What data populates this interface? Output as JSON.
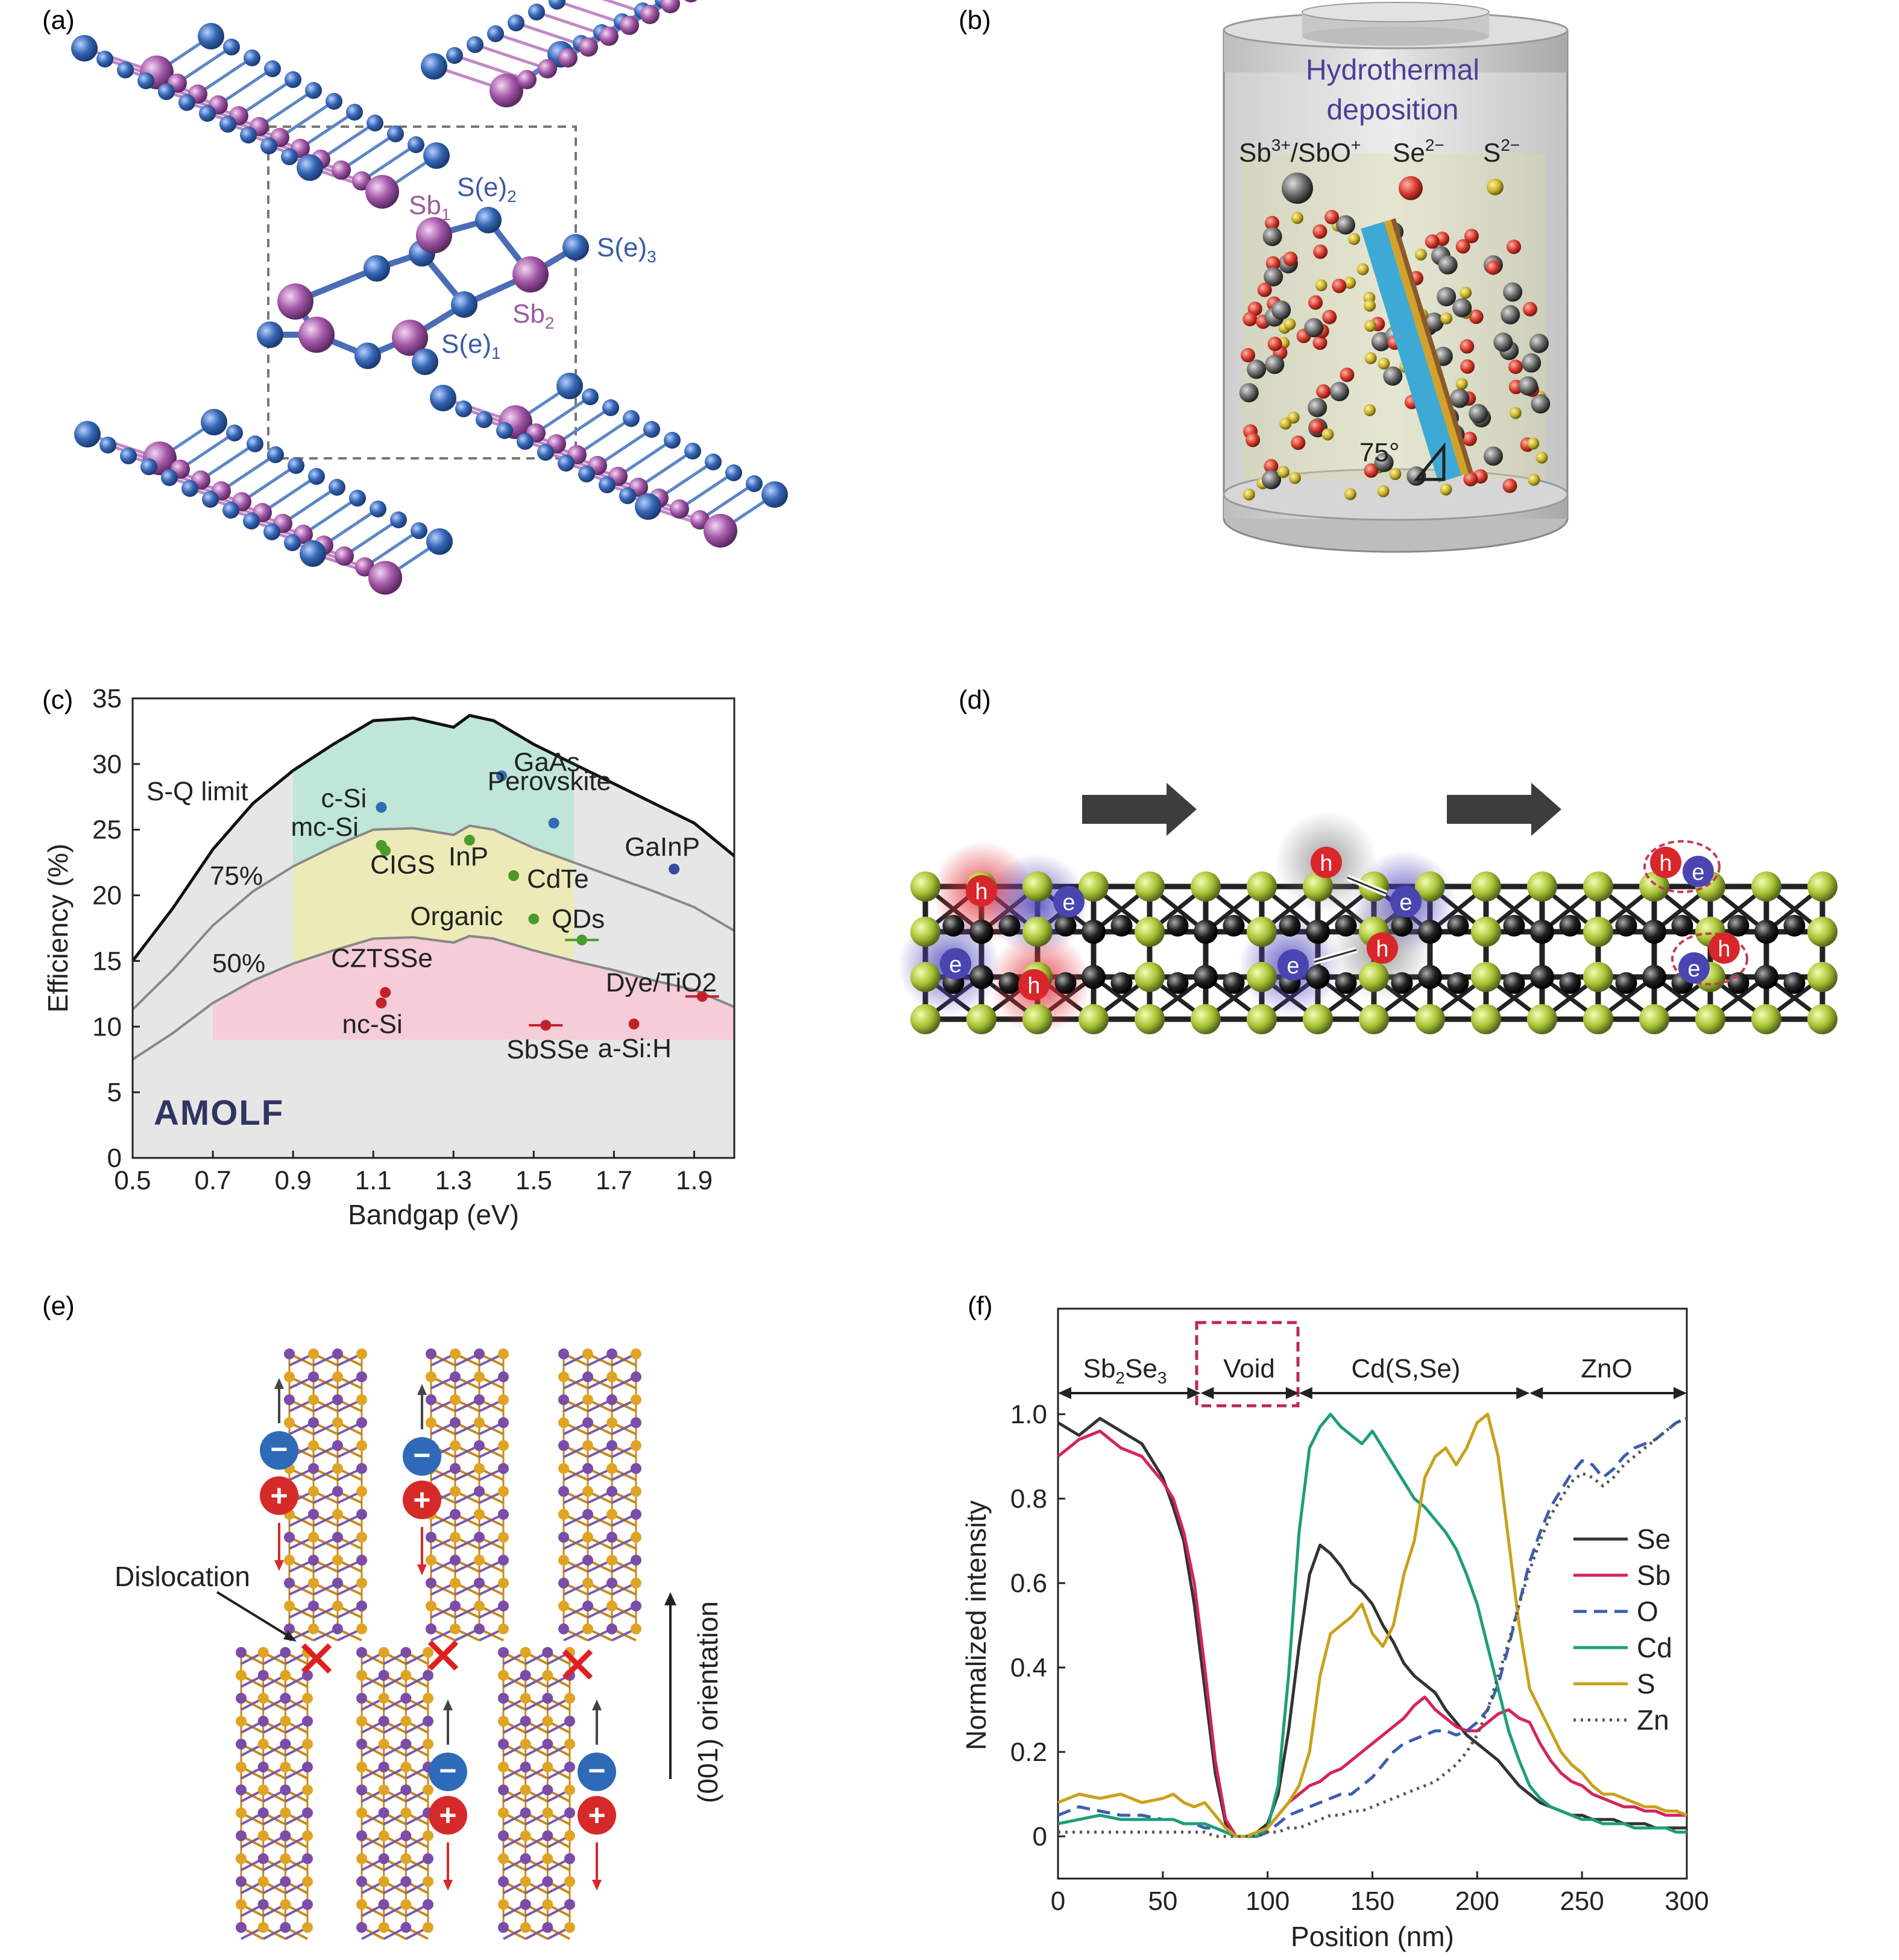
{
  "panels": {
    "a": {
      "letter": "(a)",
      "labels": {
        "sb1": "Sb",
        "sb1_sub": "1",
        "se2": "S(e)",
        "se2_sub": "2",
        "se3": "S(e)",
        "se3_sub": "3",
        "sb2": "Sb",
        "sb2_sub": "2",
        "se1": "S(e)",
        "se1_sub": "1"
      },
      "colors": {
        "sb": "#9b4f9f",
        "se": "#2f5ea8"
      }
    },
    "b": {
      "letter": "(b)",
      "title_line1": "Hydrothermal",
      "title_line2": "deposition",
      "ion1": "Sb",
      "ion1_sup": "3+",
      "ion1_rest": "/SbO",
      "ion1_rest_sup": "+",
      "ion2": "Se",
      "ion2_sup": "2−",
      "ion3": "S",
      "ion3_sup": "2−",
      "angle": "75°",
      "colors": {
        "title": "#4b3f9a",
        "sb_ion": "#555555",
        "se_ion": "#d03a2f",
        "s_ion": "#c7a51f",
        "substrate": "#3fa9d6"
      }
    },
    "c": {
      "letter": "(c)",
      "logo": "AMOLF",
      "region_labels": {
        "sq": "S-Q limit",
        "p75": "75%",
        "p50": "50%"
      }
    },
    "d": {
      "letter": "(d)",
      "hole": "h",
      "electron": "e",
      "colors": {
        "hole": "#d9262c",
        "electron": "#4a45b0",
        "s_atom": "#9fc030",
        "sb_atom": "#1a1a1a"
      }
    },
    "e": {
      "letter": "(e)",
      "dislocation": "Dislocation",
      "orientation": "(001) orientation",
      "minus": "−",
      "plus": "+"
    },
    "f": {
      "letter": "(f)",
      "regions": {
        "r1": "Sb",
        "r1_sub1": "2",
        "r1_mid": "Se",
        "r1_sub2": "3",
        "r2": "Void",
        "r3": "Cd(S,Se)",
        "r4": "ZnO"
      }
    }
  },
  "chart_data": [
    {
      "panel": "c",
      "type": "scatter",
      "xlabel": "Bandgap (eV)",
      "ylabel": "Efficiency (%)",
      "xlim": [
        0.5,
        2.0
      ],
      "ylim": [
        0,
        35
      ],
      "xticks": [
        "0.5",
        "0.7",
        "0.9",
        "1.1",
        "1.3",
        "1.5",
        "1.7",
        "1.9"
      ],
      "yticks": [
        "0",
        "5",
        "10",
        "15",
        "20",
        "25",
        "30",
        "35"
      ],
      "sq_limit": [
        [
          0.5,
          15
        ],
        [
          0.6,
          19
        ],
        [
          0.7,
          23.5
        ],
        [
          0.8,
          27
        ],
        [
          0.9,
          29.5
        ],
        [
          1.0,
          31.5
        ],
        [
          1.1,
          33.3
        ],
        [
          1.2,
          33.5
        ],
        [
          1.3,
          32.8
        ],
        [
          1.34,
          33.7
        ],
        [
          1.4,
          33.3
        ],
        [
          1.5,
          31.5
        ],
        [
          1.6,
          30
        ],
        [
          1.7,
          28.5
        ],
        [
          1.8,
          27
        ],
        [
          1.9,
          25.5
        ],
        [
          2.0,
          23
        ]
      ],
      "limit_75": [
        [
          0.5,
          11.3
        ],
        [
          0.6,
          14.3
        ],
        [
          0.7,
          17.7
        ],
        [
          0.8,
          20.3
        ],
        [
          0.9,
          22.2
        ],
        [
          1.0,
          23.7
        ],
        [
          1.1,
          25
        ],
        [
          1.2,
          25.1
        ],
        [
          1.3,
          24.6
        ],
        [
          1.34,
          25.3
        ],
        [
          1.4,
          25
        ],
        [
          1.5,
          23.6
        ],
        [
          1.6,
          22.5
        ],
        [
          1.7,
          21.4
        ],
        [
          1.8,
          20.3
        ],
        [
          1.9,
          19.1
        ],
        [
          2.0,
          17.3
        ]
      ],
      "limit_50": [
        [
          0.5,
          7.5
        ],
        [
          0.6,
          9.5
        ],
        [
          0.7,
          11.8
        ],
        [
          0.8,
          13.5
        ],
        [
          0.9,
          14.8
        ],
        [
          1.0,
          15.8
        ],
        [
          1.1,
          16.7
        ],
        [
          1.2,
          16.8
        ],
        [
          1.3,
          16.4
        ],
        [
          1.34,
          16.9
        ],
        [
          1.4,
          16.7
        ],
        [
          1.5,
          15.8
        ],
        [
          1.6,
          15
        ],
        [
          1.7,
          14.3
        ],
        [
          1.8,
          13.5
        ],
        [
          1.9,
          12.8
        ],
        [
          2.0,
          11.5
        ]
      ],
      "points": [
        {
          "name": "GaAs",
          "x": 1.42,
          "y": 29.1,
          "color": "#2f6db0"
        },
        {
          "name": "Perovskite",
          "x": 1.55,
          "y": 25.5,
          "color": "#2f6db0"
        },
        {
          "name": "c-Si",
          "x": 1.12,
          "y": 26.7,
          "color": "#2f6db0"
        },
        {
          "name": "GaInP",
          "x": 1.85,
          "y": 22.0,
          "color": "#3a4aa0"
        },
        {
          "name": "mc-Si",
          "x": 1.12,
          "y": 23.8,
          "color": "#4c9a2a"
        },
        {
          "name": "CIGS",
          "x": 1.13,
          "y": 23.4,
          "color": "#4c9a2a"
        },
        {
          "name": "InP",
          "x": 1.34,
          "y": 24.2,
          "color": "#4c9a2a"
        },
        {
          "name": "CdTe",
          "x": 1.45,
          "y": 21.5,
          "color": "#4c9a2a"
        },
        {
          "name": "Organic",
          "x": 1.5,
          "y": 18.2,
          "color": "#4c9a2a"
        },
        {
          "name": "QDs",
          "x": 1.62,
          "y": 16.6,
          "color": "#4c9a2a"
        },
        {
          "name": "CZTSSe",
          "x": 1.13,
          "y": 12.6,
          "color": "#c0222c"
        },
        {
          "name": "nc-Si",
          "x": 1.12,
          "y": 11.8,
          "color": "#c0222c"
        },
        {
          "name": "Dye/TiO2",
          "x": 1.92,
          "y": 12.3,
          "color": "#c0222c"
        },
        {
          "name": "SbSSe",
          "x": 1.53,
          "y": 10.1,
          "color": "#c0222c"
        },
        {
          "name": "a-Si:H",
          "x": 1.75,
          "y": 10.2,
          "color": "#c0222c"
        }
      ]
    },
    {
      "panel": "f",
      "type": "line",
      "xlabel": "Position (nm)",
      "ylabel": "Normalized intensity",
      "xlim": [
        0,
        300
      ],
      "ylim": [
        -0.1,
        1.25
      ],
      "xticks": [
        "0",
        "50",
        "100",
        "150",
        "200",
        "250",
        "300"
      ],
      "yticks": [
        "0",
        "0.2",
        "0.4",
        "0.6",
        "0.8",
        "1.0"
      ],
      "x": [
        0,
        10,
        20,
        30,
        40,
        50,
        55,
        60,
        65,
        70,
        75,
        80,
        85,
        90,
        95,
        100,
        105,
        110,
        115,
        120,
        125,
        130,
        135,
        140,
        145,
        150,
        155,
        160,
        165,
        170,
        175,
        180,
        185,
        190,
        195,
        200,
        205,
        210,
        215,
        220,
        225,
        230,
        235,
        240,
        245,
        250,
        255,
        260,
        265,
        270,
        275,
        280,
        285,
        290,
        295,
        300
      ],
      "series": [
        {
          "name": "Se",
          "color": "#333333",
          "dash": "",
          "values": [
            0.98,
            0.95,
            0.99,
            0.96,
            0.93,
            0.85,
            0.78,
            0.7,
            0.55,
            0.35,
            0.15,
            0.03,
            0.0,
            0.0,
            0.01,
            0.03,
            0.1,
            0.25,
            0.45,
            0.62,
            0.69,
            0.67,
            0.64,
            0.6,
            0.58,
            0.55,
            0.5,
            0.46,
            0.41,
            0.38,
            0.36,
            0.34,
            0.3,
            0.27,
            0.24,
            0.22,
            0.2,
            0.18,
            0.15,
            0.12,
            0.1,
            0.08,
            0.07,
            0.06,
            0.05,
            0.05,
            0.04,
            0.04,
            0.04,
            0.03,
            0.03,
            0.03,
            0.02,
            0.02,
            0.02,
            0.02
          ]
        },
        {
          "name": "Sb",
          "color": "#d6245a",
          "dash": "",
          "values": [
            0.9,
            0.94,
            0.96,
            0.92,
            0.9,
            0.84,
            0.8,
            0.72,
            0.6,
            0.4,
            0.18,
            0.04,
            0.0,
            0.0,
            0.0,
            0.02,
            0.05,
            0.08,
            0.1,
            0.12,
            0.13,
            0.15,
            0.16,
            0.18,
            0.2,
            0.22,
            0.24,
            0.26,
            0.28,
            0.31,
            0.33,
            0.3,
            0.28,
            0.26,
            0.25,
            0.25,
            0.27,
            0.29,
            0.3,
            0.28,
            0.27,
            0.22,
            0.18,
            0.15,
            0.13,
            0.12,
            0.1,
            0.09,
            0.08,
            0.07,
            0.07,
            0.06,
            0.06,
            0.05,
            0.05,
            0.05
          ]
        },
        {
          "name": "O",
          "color": "#3a5eb0",
          "dash": "22,12",
          "values": [
            0.05,
            0.07,
            0.06,
            0.05,
            0.05,
            0.04,
            0.04,
            0.03,
            0.03,
            0.02,
            0.02,
            0.01,
            0.0,
            0.0,
            0.0,
            0.01,
            0.03,
            0.05,
            0.06,
            0.07,
            0.08,
            0.09,
            0.1,
            0.1,
            0.12,
            0.14,
            0.17,
            0.2,
            0.22,
            0.23,
            0.24,
            0.25,
            0.25,
            0.24,
            0.25,
            0.27,
            0.3,
            0.36,
            0.45,
            0.55,
            0.65,
            0.72,
            0.78,
            0.82,
            0.86,
            0.89,
            0.88,
            0.85,
            0.87,
            0.9,
            0.92,
            0.93,
            0.94,
            0.96,
            0.98,
            0.99
          ]
        },
        {
          "name": "Cd",
          "color": "#1e9e7a",
          "dash": "",
          "values": [
            0.03,
            0.04,
            0.05,
            0.04,
            0.04,
            0.04,
            0.04,
            0.03,
            0.03,
            0.03,
            0.02,
            0.01,
            0.0,
            0.0,
            0.0,
            0.02,
            0.12,
            0.38,
            0.72,
            0.92,
            0.97,
            1.0,
            0.97,
            0.95,
            0.93,
            0.96,
            0.92,
            0.88,
            0.84,
            0.8,
            0.78,
            0.75,
            0.72,
            0.68,
            0.62,
            0.55,
            0.45,
            0.35,
            0.25,
            0.18,
            0.12,
            0.09,
            0.07,
            0.06,
            0.05,
            0.04,
            0.04,
            0.03,
            0.03,
            0.03,
            0.02,
            0.02,
            0.02,
            0.02,
            0.01,
            0.01
          ]
        },
        {
          "name": "S",
          "color": "#c9a11a",
          "dash": "",
          "values": [
            0.08,
            0.1,
            0.09,
            0.1,
            0.08,
            0.09,
            0.1,
            0.08,
            0.07,
            0.08,
            0.05,
            0.02,
            0.0,
            0.0,
            0.01,
            0.02,
            0.05,
            0.08,
            0.12,
            0.2,
            0.38,
            0.48,
            0.5,
            0.52,
            0.55,
            0.48,
            0.45,
            0.5,
            0.62,
            0.7,
            0.85,
            0.9,
            0.92,
            0.88,
            0.92,
            0.98,
            1.0,
            0.9,
            0.7,
            0.5,
            0.35,
            0.3,
            0.25,
            0.2,
            0.17,
            0.15,
            0.12,
            0.1,
            0.1,
            0.09,
            0.08,
            0.07,
            0.07,
            0.06,
            0.06,
            0.05
          ]
        },
        {
          "name": "Zn",
          "color": "#555555",
          "dash": "4,8",
          "values": [
            0.01,
            0.01,
            0.01,
            0.01,
            0.01,
            0.01,
            0.01,
            0.01,
            0.01,
            0.01,
            0.0,
            0.0,
            0.0,
            0.0,
            0.0,
            0.01,
            0.01,
            0.02,
            0.02,
            0.03,
            0.04,
            0.05,
            0.05,
            0.06,
            0.06,
            0.07,
            0.08,
            0.09,
            0.1,
            0.11,
            0.12,
            0.13,
            0.15,
            0.17,
            0.2,
            0.24,
            0.3,
            0.38,
            0.46,
            0.55,
            0.63,
            0.7,
            0.76,
            0.8,
            0.84,
            0.86,
            0.85,
            0.83,
            0.85,
            0.88,
            0.9,
            0.92,
            0.94,
            0.96,
            0.98,
            0.99
          ]
        }
      ]
    }
  ]
}
